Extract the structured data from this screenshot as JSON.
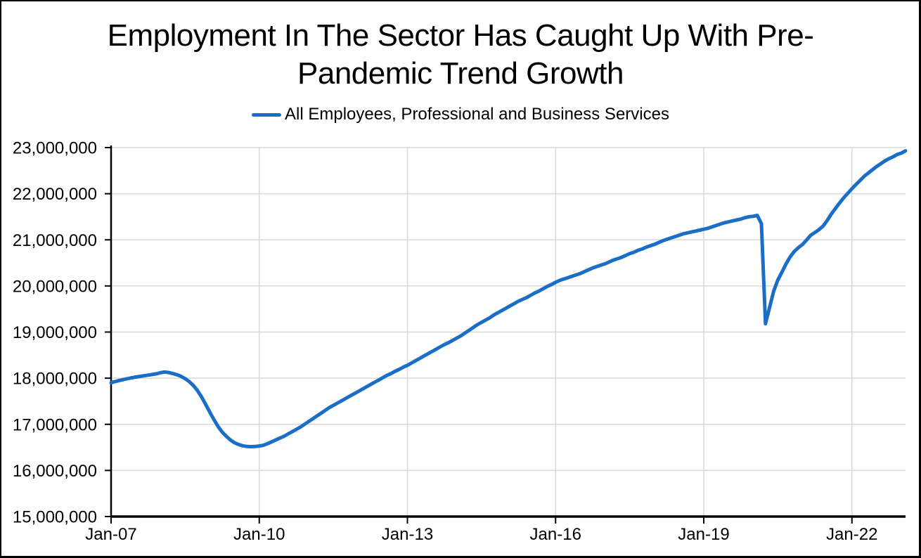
{
  "colors": {
    "line": "#1B6EC7",
    "grid": "#D9D9D9",
    "axis": "#000000",
    "text": "#000000",
    "background": "#FFFFFF",
    "frame_border": "#000000"
  },
  "chart_data": {
    "type": "line",
    "title": "Employment In The Sector Has Caught Up With Pre-Pandemic Trend Growth",
    "title_lines": [
      "Employment In The Sector Has Caught Up With Pre-",
      "Pandemic Trend Growth"
    ],
    "xlabel": "",
    "ylabel": "",
    "ylim": [
      15000000,
      23000000
    ],
    "y_tick_step": 1000000,
    "grid": true,
    "legend_position": "top",
    "y_ticks": [
      {
        "value": 23000000,
        "label": "23,000,000"
      },
      {
        "value": 22000000,
        "label": "22,000,000"
      },
      {
        "value": 21000000,
        "label": "21,000,000"
      },
      {
        "value": 20000000,
        "label": "20,000,000"
      },
      {
        "value": 19000000,
        "label": "19,000,000"
      },
      {
        "value": 18000000,
        "label": "18,000,000"
      },
      {
        "value": 17000000,
        "label": "17,000,000"
      },
      {
        "value": 16000000,
        "label": "16,000,000"
      },
      {
        "value": 15000000,
        "label": "15,000,000"
      }
    ],
    "x_ticks": [
      {
        "month_index": 0,
        "label": "Jan-07"
      },
      {
        "month_index": 36,
        "label": "Jan-10"
      },
      {
        "month_index": 72,
        "label": "Jan-13"
      },
      {
        "month_index": 108,
        "label": "Jan-16"
      },
      {
        "month_index": 144,
        "label": "Jan-19"
      },
      {
        "month_index": 180,
        "label": "Jan-22"
      }
    ],
    "series": [
      {
        "name": "All Employees, Professional and Business Services",
        "color": "#1B6EC7",
        "frequency": "monthly",
        "start_month": "Jan-2007",
        "end_month": "Feb-2023",
        "unit": "thousands of employees",
        "values_thousands": [
          17902,
          17928,
          17950,
          17970,
          17990,
          18008,
          18024,
          18038,
          18052,
          18066,
          18080,
          18095,
          18120,
          18135,
          18122,
          18100,
          18075,
          18040,
          17990,
          17925,
          17840,
          17730,
          17590,
          17430,
          17260,
          17100,
          16950,
          16830,
          16740,
          16660,
          16600,
          16560,
          16535,
          16520,
          16515,
          16520,
          16530,
          16545,
          16580,
          16620,
          16660,
          16700,
          16740,
          16790,
          16840,
          16890,
          16940,
          17000,
          17060,
          17120,
          17180,
          17240,
          17300,
          17360,
          17410,
          17460,
          17510,
          17560,
          17610,
          17660,
          17710,
          17760,
          17810,
          17860,
          17910,
          17960,
          18010,
          18060,
          18100,
          18150,
          18190,
          18240,
          18280,
          18330,
          18380,
          18430,
          18480,
          18530,
          18580,
          18630,
          18680,
          18730,
          18770,
          18820,
          18870,
          18920,
          18980,
          19040,
          19100,
          19160,
          19210,
          19260,
          19310,
          19370,
          19420,
          19470,
          19520,
          19570,
          19620,
          19670,
          19710,
          19750,
          19800,
          19850,
          19890,
          19940,
          19990,
          20030,
          20080,
          20120,
          20150,
          20180,
          20210,
          20240,
          20270,
          20310,
          20350,
          20390,
          20420,
          20450,
          20480,
          20520,
          20560,
          20590,
          20620,
          20660,
          20700,
          20730,
          20770,
          20800,
          20840,
          20870,
          20900,
          20940,
          20980,
          21010,
          21040,
          21070,
          21100,
          21130,
          21150,
          21170,
          21190,
          21210,
          21230,
          21250,
          21280,
          21310,
          21340,
          21370,
          21390,
          21410,
          21430,
          21450,
          21480,
          21500,
          21510,
          21530,
          21350,
          19180,
          19540,
          19890,
          20130,
          20300,
          20480,
          20630,
          20750,
          20830,
          20900,
          21000,
          21100,
          21160,
          21220,
          21300,
          21420,
          21560,
          21680,
          21800,
          21910,
          22010,
          22110,
          22200,
          22290,
          22380,
          22450,
          22520,
          22590,
          22650,
          22710,
          22760,
          22800,
          22850,
          22880,
          22930
        ]
      }
    ]
  }
}
